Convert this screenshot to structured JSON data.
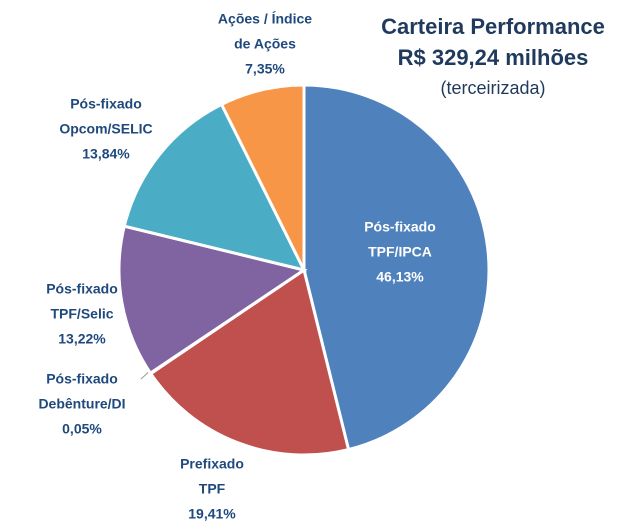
{
  "chart_data": {
    "type": "pie",
    "title": "Carteira Performance",
    "subtitle": "R$ 329,24 milhões",
    "annotation": "(terceirizada)",
    "categories": [
      [
        "Pós-fixado",
        "TPF/IPCA"
      ],
      [
        "Prefixado",
        "TPF"
      ],
      [
        "Pós-fixado",
        "Debênture/DI"
      ],
      [
        "Pós-fixado",
        "TPF/Selic"
      ],
      [
        "Pós-fixado",
        "Opcom/SELIC"
      ],
      [
        "Ações / Índice",
        "de Ações"
      ]
    ],
    "values": [
      46.13,
      19.41,
      0.05,
      13.22,
      13.84,
      7.35
    ],
    "value_labels": [
      "46,13%",
      "19,41%",
      "0,05%",
      "13,22%",
      "13,84%",
      "7,35%"
    ],
    "colors": [
      "#4f81bd",
      "#c0504d",
      "#9bbb59",
      "#8064a2",
      "#4bacc6",
      "#f79646"
    ]
  }
}
